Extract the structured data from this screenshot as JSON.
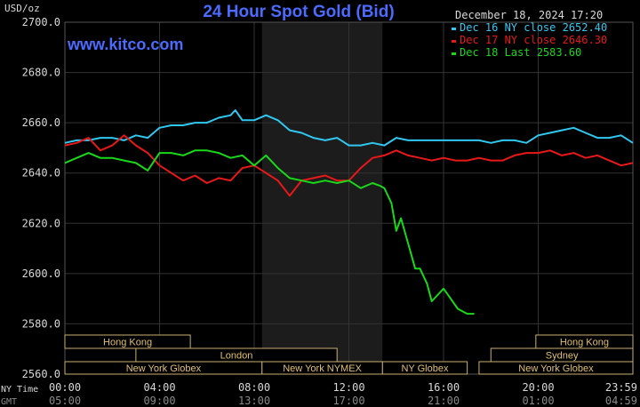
{
  "header": {
    "y_unit": "USD/oz",
    "title": "24 Hour Spot Gold (Bid)",
    "datetime": "December 18, 2024 17:20",
    "website": "www.kitco.com"
  },
  "colors": {
    "background": "#000000",
    "grid": "#333333",
    "session_shade": "#1c1c1c",
    "title": "#4b6bff",
    "website": "#4b6bff",
    "axis_text": "#d8d8d8",
    "label_box_fill": "#000000",
    "label_box_stroke": "#c8b070",
    "label_text": "#e0c070"
  },
  "chart_data": {
    "type": "line",
    "title": "24 Hour Spot Gold (Bid)",
    "ylabel": "USD/oz",
    "ylim": [
      2560,
      2700
    ],
    "yticks": [
      "2700.0",
      "2680.0",
      "2660.0",
      "2640.0",
      "2620.0",
      "2600.0",
      "2580.0",
      "2560.0"
    ],
    "xlim": [
      0,
      24
    ],
    "grid": true,
    "legend_position": "top-right",
    "x_ticks_ny": [
      "00:00",
      "04:00",
      "08:00",
      "12:00",
      "16:00",
      "20:00",
      "23:59"
    ],
    "x_ticks_gmt": [
      "05:00",
      "09:00",
      "13:00",
      "17:00",
      "21:00",
      "01:00",
      "04:59"
    ],
    "x_axis_label_ny": "NY Time",
    "x_axis_label_gmt": "GMT",
    "nymex_session": [
      8.33,
      13.42
    ],
    "series": [
      {
        "name": "Dec 16 NY close 2652.40",
        "color": "#30c8f0",
        "x": [
          0,
          0.5,
          1,
          1.5,
          2,
          2.5,
          3,
          3.5,
          4,
          4.5,
          5,
          5.5,
          6,
          6.5,
          7,
          7.2,
          7.5,
          8,
          8.5,
          9,
          9.5,
          10,
          10.5,
          11,
          11.5,
          12,
          12.5,
          13,
          13.5,
          14,
          14.5,
          15,
          15.5,
          16,
          16.5,
          17,
          17.5,
          18,
          18.5,
          19,
          19.5,
          20,
          20.5,
          21,
          21.5,
          22,
          22.5,
          23,
          23.5,
          24
        ],
        "values": [
          2652,
          2653,
          2653,
          2654,
          2654,
          2653,
          2655,
          2654,
          2658,
          2659,
          2659,
          2660,
          2660,
          2662,
          2663,
          2665,
          2661,
          2661,
          2663,
          2661,
          2657,
          2656,
          2654,
          2653,
          2654,
          2651,
          2651,
          2652,
          2651,
          2654,
          2653,
          2653,
          2653,
          2653,
          2653,
          2653,
          2653,
          2652,
          2653,
          2653,
          2652,
          2655,
          2656,
          2657,
          2658,
          2656,
          2654,
          2654,
          2655,
          2652
        ]
      },
      {
        "name": "Dec 17 NY close 2646.30",
        "color": "#e81818",
        "x": [
          0,
          0.5,
          1,
          1.5,
          2,
          2.5,
          3,
          3.5,
          4,
          4.5,
          5,
          5.5,
          6,
          6.5,
          7,
          7.5,
          8,
          8.5,
          9,
          9.5,
          10,
          10.5,
          11,
          11.5,
          12,
          12.5,
          13,
          13.5,
          14,
          14.5,
          15,
          15.5,
          16,
          16.5,
          17,
          17.5,
          18,
          18.5,
          19,
          19.5,
          20,
          20.5,
          21,
          21.5,
          22,
          22.5,
          23,
          23.5,
          24
        ],
        "values": [
          2651,
          2652,
          2654,
          2649,
          2651,
          2655,
          2651,
          2648,
          2643,
          2640,
          2637,
          2639,
          2636,
          2638,
          2637,
          2642,
          2643,
          2640,
          2637,
          2631,
          2637,
          2638,
          2639,
          2637,
          2637,
          2642,
          2646,
          2647,
          2649,
          2647,
          2646,
          2645,
          2646,
          2645,
          2645,
          2646,
          2645,
          2645,
          2647,
          2648,
          2648,
          2649,
          2647,
          2648,
          2646,
          2647,
          2645,
          2643,
          2644
        ]
      },
      {
        "name": "Dec 18 Last 2583.60",
        "color": "#18d818",
        "x": [
          0,
          0.5,
          1,
          1.5,
          2,
          2.5,
          3,
          3.5,
          4,
          4.5,
          5,
          5.5,
          6,
          6.5,
          7,
          7.5,
          8,
          8.5,
          9,
          9.5,
          10,
          10.5,
          11,
          11.5,
          12,
          12.5,
          13,
          13.3,
          13.5,
          13.8,
          14,
          14.2,
          14.5,
          14.8,
          15,
          15.3,
          15.5,
          15.8,
          16,
          16.3,
          16.6,
          17,
          17.3
        ],
        "values": [
          2644,
          2646,
          2648,
          2646,
          2646,
          2645,
          2644,
          2641,
          2648,
          2648,
          2647,
          2649,
          2649,
          2648,
          2646,
          2647,
          2643,
          2647,
          2642,
          2638,
          2637,
          2636,
          2637,
          2636,
          2637,
          2634,
          2636,
          2635,
          2634,
          2628,
          2617,
          2622,
          2612,
          2602,
          2602,
          2596,
          2589,
          2592,
          2594,
          2590,
          2586,
          2584,
          2584
        ]
      }
    ]
  },
  "market_sessions": {
    "row1": [
      {
        "label": "Hong Kong",
        "start": 0,
        "end": 5.3
      },
      {
        "label": "Hong Kong",
        "start": 19.9,
        "end": 24
      }
    ],
    "row2": [
      {
        "label": "London",
        "start": 3,
        "end": 11.5
      },
      {
        "label": "Sydney",
        "start": 18,
        "end": 24
      }
    ],
    "row3": [
      {
        "label": "New York Globex",
        "start": 0,
        "end": 8.33
      },
      {
        "label": "New York NYMEX",
        "start": 8.33,
        "end": 13.42
      },
      {
        "label": "NY Globex",
        "start": 13.42,
        "end": 17
      },
      {
        "label": "New York Globex",
        "start": 17.5,
        "end": 24
      }
    ]
  }
}
